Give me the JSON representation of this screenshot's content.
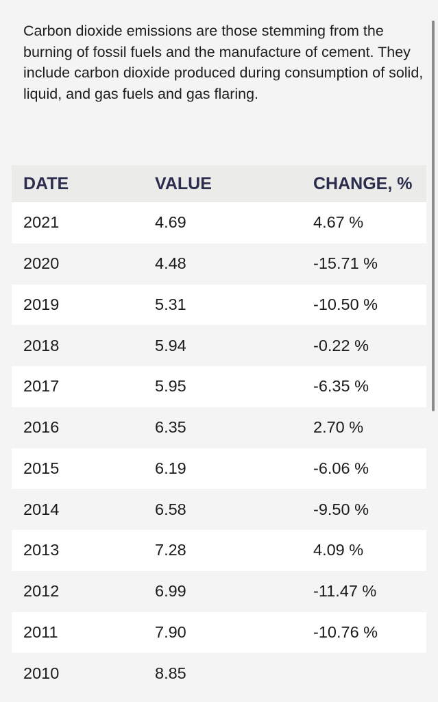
{
  "description": "Carbon dioxide emissions are those stemming from the burning of fossil fuels and the manufacture of cement. They include carbon dioxide produced during consumption of solid, liquid, and gas fuels and gas flaring.",
  "table": {
    "headers": {
      "date": "DATE",
      "value": "VALUE",
      "change": "CHANGE, %"
    },
    "rows": [
      {
        "date": "2021",
        "value": "4.69",
        "change": "4.67 %"
      },
      {
        "date": "2020",
        "value": "4.48",
        "change": "-15.71 %"
      },
      {
        "date": "2019",
        "value": "5.31",
        "change": "-10.50 %"
      },
      {
        "date": "2018",
        "value": "5.94",
        "change": "-0.22 %"
      },
      {
        "date": "2017",
        "value": "5.95",
        "change": "-6.35 %"
      },
      {
        "date": "2016",
        "value": "6.35",
        "change": "2.70 %"
      },
      {
        "date": "2015",
        "value": "6.19",
        "change": "-6.06 %"
      },
      {
        "date": "2014",
        "value": "6.58",
        "change": "-9.50 %"
      },
      {
        "date": "2013",
        "value": "7.28",
        "change": "4.09 %"
      },
      {
        "date": "2012",
        "value": "6.99",
        "change": "-11.47 %"
      },
      {
        "date": "2011",
        "value": "7.90",
        "change": "-10.76 %"
      },
      {
        "date": "2010",
        "value": "8.85",
        "change": ""
      }
    ]
  }
}
